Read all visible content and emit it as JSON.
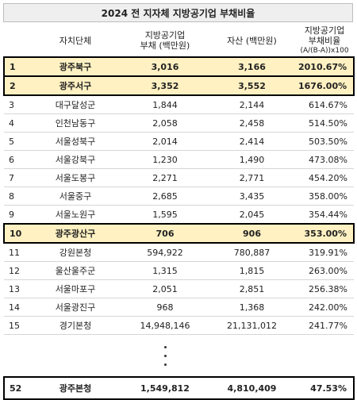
{
  "title": "2024 전 지자체 지방공기업 부채비율",
  "headers": {
    "name": "자치단체",
    "debt_line1": "지방공기업",
    "debt_line2": "부채 (백만원)",
    "asset": "자산 (백만원)",
    "ratio_line1": "지방공기업",
    "ratio_line2": "부채비율",
    "ratio_line3": "(A/(B-A))x100"
  },
  "rows": [
    {
      "rank": "1",
      "name": "광주북구",
      "debt": "3,016",
      "asset": "3,166",
      "ratio": "2010.67%",
      "highlight": true
    },
    {
      "rank": "2",
      "name": "광주서구",
      "debt": "3,352",
      "asset": "3,552",
      "ratio": "1676.00%",
      "highlight": true
    },
    {
      "rank": "3",
      "name": "대구달성군",
      "debt": "1,844",
      "asset": "2,144",
      "ratio": "614.67%",
      "highlight": false
    },
    {
      "rank": "4",
      "name": "인천남동구",
      "debt": "2,058",
      "asset": "2,458",
      "ratio": "514.50%",
      "highlight": false
    },
    {
      "rank": "5",
      "name": "서울성북구",
      "debt": "2,014",
      "asset": "2,414",
      "ratio": "503.50%",
      "highlight": false
    },
    {
      "rank": "6",
      "name": "서울강북구",
      "debt": "1,230",
      "asset": "1,490",
      "ratio": "473.08%",
      "highlight": false
    },
    {
      "rank": "7",
      "name": "서울도봉구",
      "debt": "2,271",
      "asset": "2,771",
      "ratio": "454.20%",
      "highlight": false
    },
    {
      "rank": "8",
      "name": "서울중구",
      "debt": "2,685",
      "asset": "3,435",
      "ratio": "358.00%",
      "highlight": false
    },
    {
      "rank": "9",
      "name": "서울노원구",
      "debt": "1,595",
      "asset": "2,045",
      "ratio": "354.44%",
      "highlight": false
    },
    {
      "rank": "10",
      "name": "광주광산구",
      "debt": "706",
      "asset": "906",
      "ratio": "353.00%",
      "highlight": true
    },
    {
      "rank": "11",
      "name": "강원본청",
      "debt": "594,922",
      "asset": "780,887",
      "ratio": "319.91%",
      "highlight": false
    },
    {
      "rank": "12",
      "name": "울산울주군",
      "debt": "1,315",
      "asset": "1,815",
      "ratio": "263.00%",
      "highlight": false
    },
    {
      "rank": "13",
      "name": "서울마포구",
      "debt": "2,051",
      "asset": "2,851",
      "ratio": "256.38%",
      "highlight": false
    },
    {
      "rank": "14",
      "name": "서울광진구",
      "debt": "968",
      "asset": "1,368",
      "ratio": "242.00%",
      "highlight": false
    },
    {
      "rank": "15",
      "name": "경기본청",
      "debt": "14,948,146",
      "asset": "21,131,012",
      "ratio": "241.77%",
      "highlight": false
    }
  ],
  "total_row": {
    "rank": "52",
    "name": "광주본청",
    "debt": "1,549,812",
    "asset": "4,810,409",
    "ratio": "47.53%"
  }
}
